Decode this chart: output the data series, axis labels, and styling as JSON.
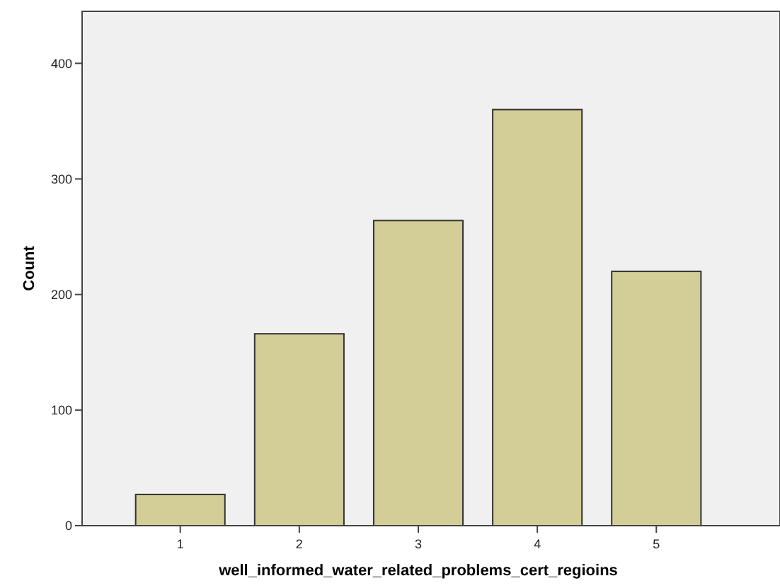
{
  "chart_data": {
    "type": "bar",
    "xlabel": "well_informed_water_related_problems_cert_regioins",
    "ylabel": "Count",
    "categories": [
      "1",
      "2",
      "3",
      "4",
      "5"
    ],
    "values": [
      27,
      166,
      264,
      360,
      220
    ],
    "color": "#d3ce97",
    "ylim": [
      0,
      445
    ],
    "yticks": [
      0,
      100,
      200,
      300,
      400
    ],
    "grid": false
  }
}
